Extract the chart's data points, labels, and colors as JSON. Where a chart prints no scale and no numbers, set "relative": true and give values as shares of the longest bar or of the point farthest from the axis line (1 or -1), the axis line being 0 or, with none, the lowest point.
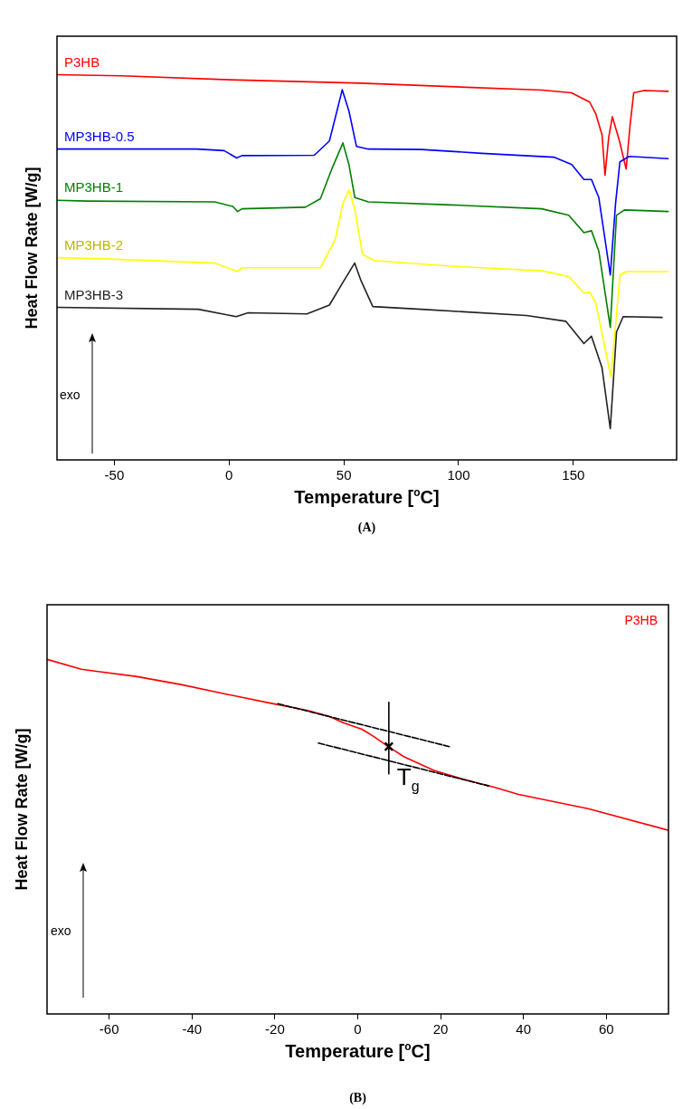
{
  "chart_data": [
    {
      "type": "line",
      "relative": true,
      "xlabel": "Temperature [$^{o}$C]",
      "ylabel": "Heat Flow Rate [W/g]",
      "xlim": [
        -75,
        195
      ],
      "xticks": [
        -50,
        0,
        50,
        100,
        150
      ],
      "legend": false,
      "marker": "none",
      "line_style": "solid",
      "annotations": [
        "exo",
        "(A)"
      ],
      "series": [
        {
          "name": "P3HB",
          "color": "#ff0000",
          "x": [
            -75,
            -46.9,
            0.4,
            57.5,
            136.2,
            149.2,
            157.1,
            159.8,
            162.5,
            163.8,
            165.4,
            167.0,
            170.1,
            173.0,
            174.7,
            176.3,
            180.8,
            191.3
          ],
          "values": [
            1.0,
            0.997,
            0.987,
            0.978,
            0.96,
            0.953,
            0.929,
            0.898,
            0.844,
            0.739,
            0.837,
            0.891,
            0.828,
            0.755,
            0.868,
            0.953,
            0.959,
            0.957
          ]
        },
        {
          "name": "MP3HB-0.5",
          "color": "#0000ff",
          "x": [
            -75,
            -14.2,
            -2.2,
            3.3,
            5.6,
            37.1,
            43.7,
            47,
            49.3,
            52.2,
            55.5,
            60.7,
            83.7,
            110,
            141.5,
            149.3,
            154.6,
            157.9,
            161.1,
            166.1,
            168.4,
            170.3,
            174.3,
            191.3
          ],
          "values": [
            0.807,
            0.807,
            0.803,
            0.784,
            0.79,
            0.791,
            0.828,
            0.906,
            0.961,
            0.906,
            0.814,
            0.807,
            0.806,
            0.796,
            0.786,
            0.767,
            0.728,
            0.728,
            0.681,
            0.48,
            0.666,
            0.774,
            0.788,
            0.782
          ]
        },
        {
          "name": "MP3HB-1",
          "color": "#008000",
          "x": [
            -75,
            -61.4,
            -6.3,
            1.6,
            3.7,
            5.6,
            33.2,
            39.8,
            45,
            49.6,
            52.2,
            54.8,
            60.7,
            96.9,
            136.2,
            148,
            154.6,
            157.9,
            161.1,
            166.1,
            168.8,
            172.3,
            191.3
          ],
          "values": [
            0.674,
            0.672,
            0.67,
            0.658,
            0.645,
            0.652,
            0.656,
            0.678,
            0.759,
            0.823,
            0.767,
            0.681,
            0.67,
            0.662,
            0.652,
            0.635,
            0.59,
            0.595,
            0.542,
            0.344,
            0.635,
            0.649,
            0.645
          ]
        },
        {
          "name": "MP3HB-2",
          "color": "#ffff00",
          "x": [
            -75,
            -54.7,
            -6.3,
            3.7,
            5.6,
            39.8,
            46.3,
            49.6,
            52.2,
            54.8,
            58.1,
            63.4,
            96.9,
            136.2,
            148,
            154.6,
            157.2,
            159.8,
            166.4,
            170.3,
            173,
            191.3
          ],
          "values": [
            0.525,
            0.522,
            0.511,
            0.489,
            0.499,
            0.499,
            0.573,
            0.666,
            0.701,
            0.65,
            0.534,
            0.517,
            0.503,
            0.491,
            0.476,
            0.433,
            0.435,
            0.407,
            0.215,
            0.48,
            0.489,
            0.489
          ]
        },
        {
          "name": "MP3HB-3",
          "color": "#222222",
          "x": [
            -75,
            -13.4,
            3.1,
            8.3,
            33.9,
            43.7,
            49.6,
            54.7,
            57.5,
            62.6,
            83.7,
            129.6,
            146.7,
            154.6,
            157.9,
            162.5,
            166.1,
            168.8,
            171.7,
            188.7
          ],
          "values": [
            0.396,
            0.391,
            0.372,
            0.382,
            0.379,
            0.402,
            0.461,
            0.511,
            0.465,
            0.398,
            0.391,
            0.375,
            0.36,
            0.302,
            0.321,
            0.239,
            0.081,
            0.332,
            0.372,
            0.37
          ]
        }
      ]
    },
    {
      "type": "line",
      "relative": true,
      "xlabel": "Temperature [$^{o}$C]",
      "ylabel": "Heat Flow Rate [W/g]",
      "xlim": [
        -75,
        75
      ],
      "xticks": [
        -60,
        -40,
        -20,
        0,
        20,
        40,
        60
      ],
      "legend": "top right",
      "annotations": [
        {
          "text": "T$_{g}$",
          "x": 7.5,
          "y": 0.754
        },
        "exo",
        "(B)"
      ],
      "series": [
        {
          "name": "P3HB",
          "color": "#ff0000",
          "marker": "none",
          "line_style": "solid",
          "x": [
            -75,
            -66.7,
            -62.3,
            -53.6,
            -42.7,
            -31.8,
            -20.9,
            -12.1,
            -6.7,
            -3.4,
            1.0,
            3.8,
            7.5,
            11.2,
            18.4,
            25.7,
            33.1,
            38.8,
            55.6,
            75
          ],
          "values": [
            1,
            0.972,
            0.965,
            0.952,
            0.929,
            0.902,
            0.876,
            0.856,
            0.838,
            0.821,
            0.803,
            0.783,
            0.753,
            0.725,
            0.687,
            0.661,
            0.639,
            0.619,
            0.579,
            0.518
          ]
        },
        {
          "type": "line",
          "color": "#000000",
          "marker": "none",
          "line_style": "dashed",
          "x": [
            -19.3,
            22.1
          ],
          "values": [
            0.875,
            0.754
          ]
        },
        {
          "type": "line",
          "color": "#000000",
          "marker": "none",
          "line_style": "dashed",
          "x": [
            -9.5,
            31.6
          ],
          "values": [
            0.764,
            0.643
          ]
        },
        {
          "type": "line",
          "color": "#000000",
          "marker": "none",
          "line_style": "solid",
          "x": [
            7.5,
            7.5
          ],
          "values": [
            0.879,
            0.677
          ]
        },
        {
          "type": "scatter",
          "color": "#000000",
          "marker": "cross",
          "x": [
            7.5
          ],
          "values": [
            0.754
          ]
        }
      ]
    }
  ]
}
